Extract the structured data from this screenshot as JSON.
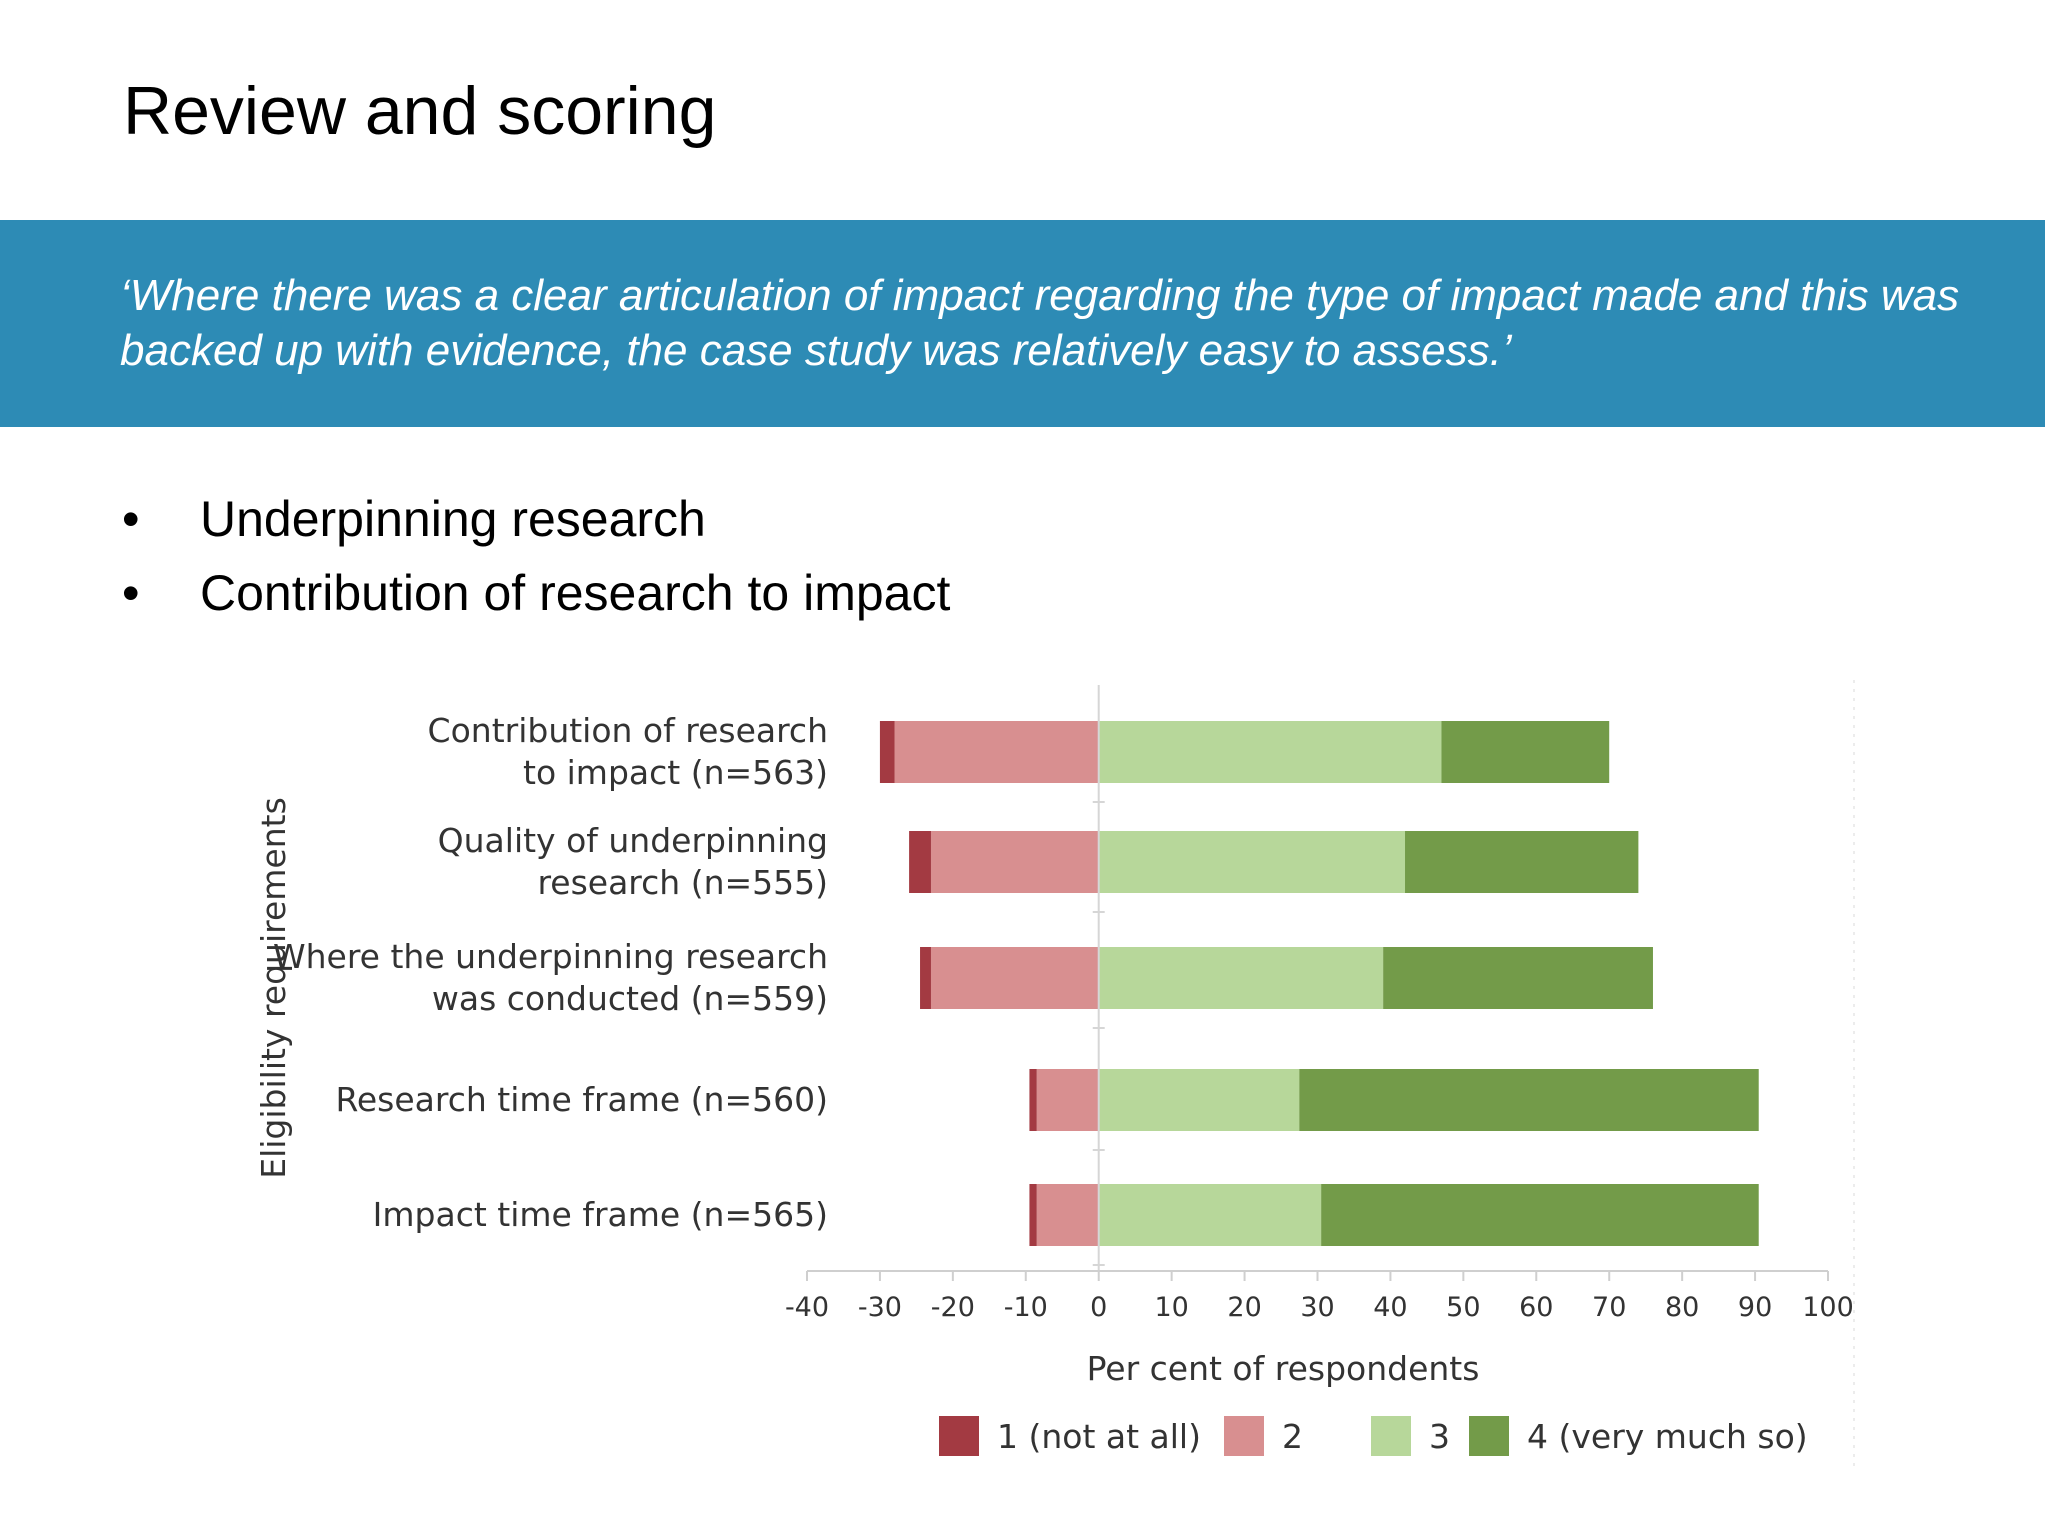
{
  "slide": {
    "title": "Review and scoring",
    "quote": "‘Where there was a clear articulation of impact regarding the type of impact made and this was backed up with evidence, the case study was relatively easy to assess.’",
    "bullets": [
      "Underpinning research",
      "Contribution of research to impact"
    ],
    "banner_color": "#2d8bb5"
  },
  "chart_data": {
    "type": "bar",
    "orientation": "horizontal",
    "stacked": "diverging",
    "title": "",
    "xlabel": "Per cent of respondents",
    "ylabel": "Eligibility requirements",
    "xlim": [
      -40,
      100
    ],
    "xticks": [
      "-40",
      "-30",
      "-20",
      "-10",
      "0",
      "10",
      "20",
      "30",
      "40",
      "50",
      "60",
      "70",
      "80",
      "90",
      "100"
    ],
    "categories": [
      [
        "Contribution of research",
        "to impact (n=563)"
      ],
      [
        "Quality of underpinning",
        "research (n=555)"
      ],
      [
        "Where the underpinning research",
        "was conducted (n=559)"
      ],
      [
        "Research time frame (n=560)"
      ],
      [
        "Impact time frame (n=565)"
      ]
    ],
    "series": [
      {
        "name": "1 (not at all)",
        "color": "#a33a42",
        "values": [
          -2,
          -3,
          -1.5,
          -1,
          -1
        ]
      },
      {
        "name": "2",
        "color": "#d88f90",
        "values": [
          -28,
          -23,
          -23,
          -8.5,
          -8.5
        ]
      },
      {
        "name": "3",
        "color": "#b7d79a",
        "values": [
          47,
          42,
          39,
          27.5,
          30.5
        ]
      },
      {
        "name": "4 (very much so)",
        "color": "#739b49",
        "values": [
          23,
          32,
          37,
          63,
          60
        ]
      }
    ],
    "legend_position": "bottom",
    "grid": false
  }
}
